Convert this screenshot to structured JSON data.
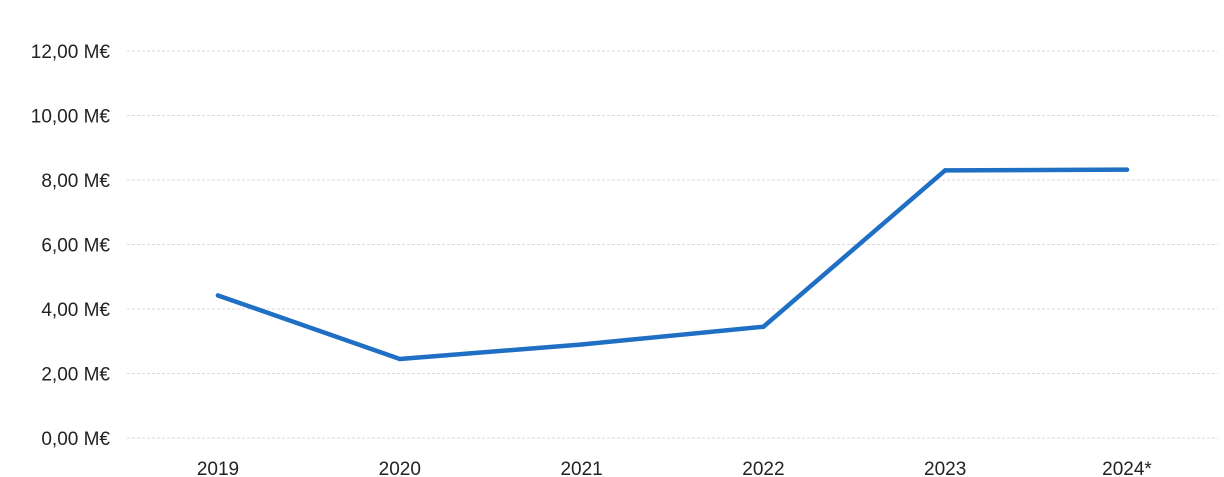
{
  "chart_data": {
    "type": "line",
    "title": "",
    "xlabel": "",
    "ylabel": "",
    "categories": [
      "2019",
      "2020",
      "2021",
      "2022",
      "2023",
      "2024*"
    ],
    "series": [
      {
        "values": [
          4.42,
          2.45,
          2.9,
          3.45,
          8.3,
          8.32
        ],
        "color": "#1f6fc5"
      }
    ],
    "y_ticks": [
      {
        "value": 0,
        "label": "0,00 M€"
      },
      {
        "value": 2,
        "label": "2,00 M€"
      },
      {
        "value": 4,
        "label": "4,00 M€"
      },
      {
        "value": 6,
        "label": "6,00 M€"
      },
      {
        "value": 8,
        "label": "8,00 M€"
      },
      {
        "value": 10,
        "label": "10,00 M€"
      },
      {
        "value": 12,
        "label": "12,00 M€"
      }
    ],
    "ylim": [
      0,
      12
    ],
    "grid": true,
    "legend": "none"
  }
}
